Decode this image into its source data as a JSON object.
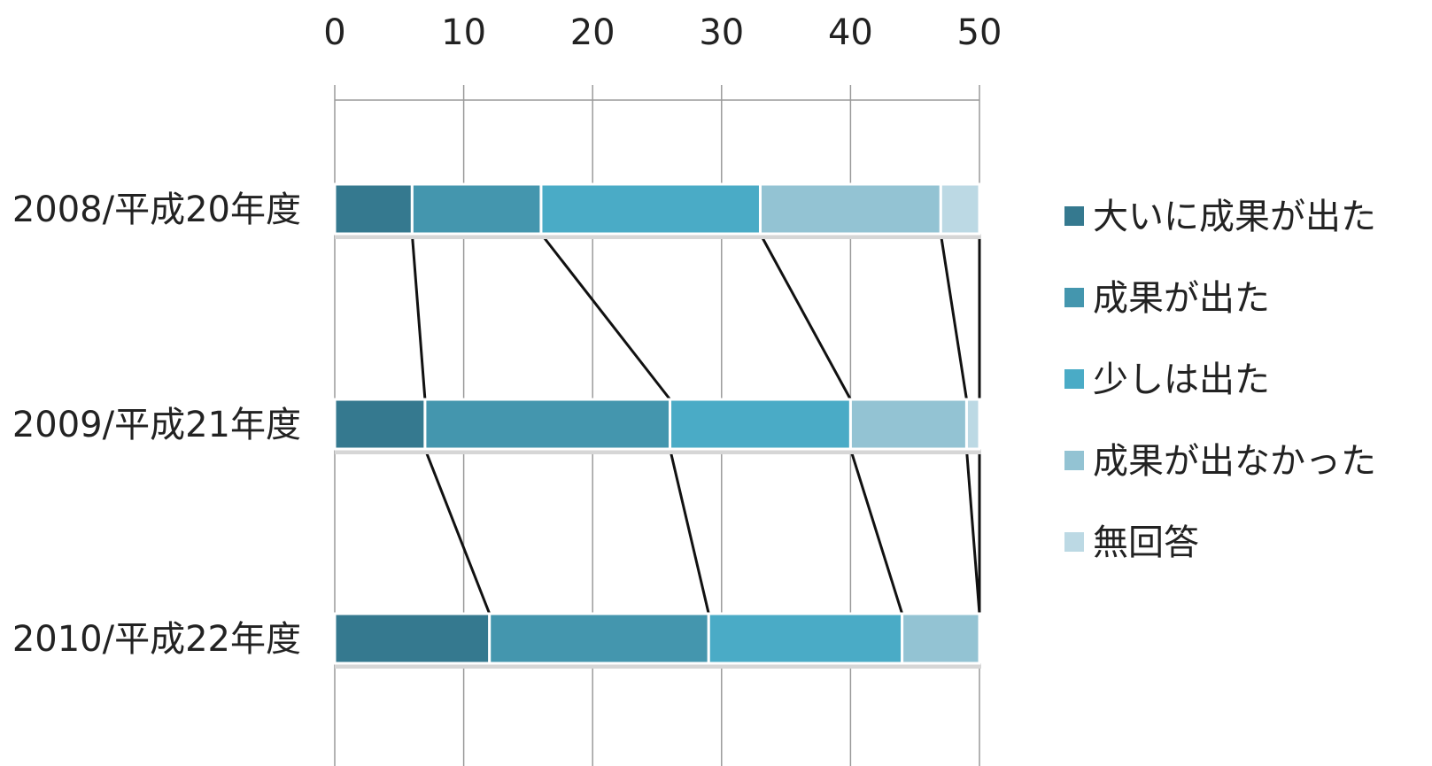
{
  "chart_data": {
    "type": "bar",
    "stacked": true,
    "orientation": "horizontal",
    "categories": [
      "2008/平成20年度",
      "2009/平成21年度",
      "2010/平成22年度"
    ],
    "series": [
      {
        "name": "大いに成果が出た",
        "color": "#35798f",
        "values": [
          6,
          7,
          12
        ]
      },
      {
        "name": "成果が出た",
        "color": "#4496ae",
        "values": [
          10,
          19,
          17
        ]
      },
      {
        "name": "少しは出た",
        "color": "#4aabc6",
        "values": [
          17,
          14,
          15
        ]
      },
      {
        "name": "成果が出なかった",
        "color": "#93c3d3",
        "values": [
          14,
          9,
          6
        ]
      },
      {
        "name": "無回答",
        "color": "#bcd9e4",
        "values": [
          3,
          1,
          0
        ]
      }
    ],
    "xlim": [
      0,
      50
    ],
    "xticks": [
      "0",
      "10",
      "20",
      "30",
      "40",
      "50"
    ],
    "axis_position": "top",
    "grid": true,
    "series_lines": true,
    "legend_position": "right"
  }
}
